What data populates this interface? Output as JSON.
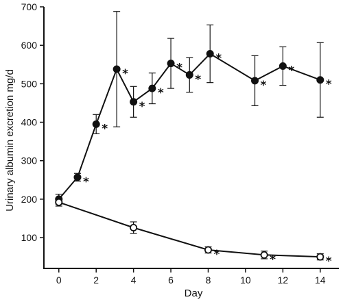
{
  "chart_data": {
    "type": "line",
    "xlabel": "Day",
    "ylabel": "Urinary albumin excretion mg/d",
    "xlim": [
      -0.8,
      15.0
    ],
    "ylim": [
      20,
      700
    ],
    "xticks": [
      0,
      2,
      4,
      6,
      8,
      10,
      12,
      14
    ],
    "yticks": [
      100,
      200,
      300,
      400,
      500,
      600,
      700
    ],
    "grid": false,
    "series": [
      {
        "marker": "filled-circle",
        "color": "#111111",
        "points": [
          {
            "x": 0,
            "y": 200,
            "err": 13,
            "star": false
          },
          {
            "x": 1,
            "y": 257,
            "err": 10,
            "star": true
          },
          {
            "x": 2,
            "y": 395,
            "err": 25,
            "star": true
          },
          {
            "x": 3.1,
            "y": 538,
            "err": 150,
            "star": true
          },
          {
            "x": 4,
            "y": 453,
            "err": 40,
            "star": true
          },
          {
            "x": 5,
            "y": 488,
            "err": 40,
            "star": true
          },
          {
            "x": 6,
            "y": 553,
            "err": 65,
            "star": true
          },
          {
            "x": 7,
            "y": 523,
            "err": 45,
            "star": true
          },
          {
            "x": 8.1,
            "y": 578,
            "err": 75,
            "star": true
          },
          {
            "x": 10.5,
            "y": 508,
            "err": 65,
            "star": true
          },
          {
            "x": 12,
            "y": 546,
            "err": 50,
            "star": true
          },
          {
            "x": 14,
            "y": 510,
            "err": 97,
            "star": true
          }
        ]
      },
      {
        "marker": "open-circle",
        "color": "#111111",
        "points": [
          {
            "x": 0,
            "y": 192,
            "err": 10,
            "star": false
          },
          {
            "x": 4,
            "y": 126,
            "err": 15,
            "star": false
          },
          {
            "x": 8,
            "y": 68,
            "err": 8,
            "star": true
          },
          {
            "x": 11,
            "y": 55,
            "err": 10,
            "star": true
          },
          {
            "x": 14,
            "y": 50,
            "err": 8,
            "star": true
          }
        ]
      }
    ],
    "annotations": {
      "significance_mark": "*"
    }
  }
}
